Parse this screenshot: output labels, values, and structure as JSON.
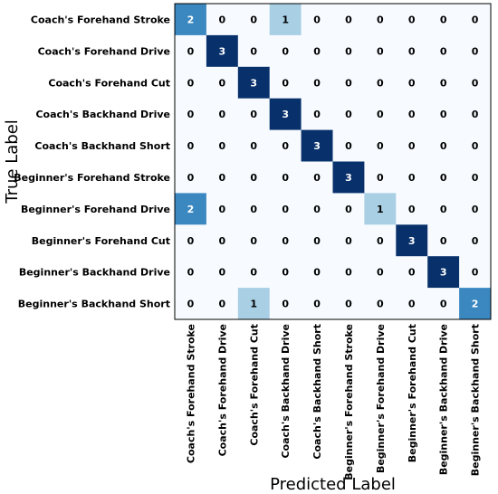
{
  "chart_data": {
    "type": "heatmap",
    "title": "",
    "xlabel": "Predicted Label",
    "ylabel": "True Label",
    "row_labels": [
      "Coach's Forehand Stroke",
      "Coach's Forehand Drive",
      "Coach's Forehand Cut",
      "Coach's Backhand Drive",
      "Coach's Backhand Short",
      "Beginner's Forehand Stroke",
      "Beginner's Forehand Drive",
      "Beginner's Forehand Cut",
      "Beginner's Backhand Drive",
      "Beginner's Backhand Short"
    ],
    "col_labels": [
      "Coach's Forehand Stroke",
      "Coach's Forehand Drive",
      "Coach's Forehand Cut",
      "Coach's Backhand Drive",
      "Coach's Backhand Short",
      "Beginner's Forehand Stroke",
      "Beginner's Forehand Drive",
      "Beginner's Forehand Cut",
      "Beginner's Backhand Drive",
      "Beginner's Backhand Short"
    ],
    "values": [
      [
        2,
        0,
        0,
        1,
        0,
        0,
        0,
        0,
        0,
        0
      ],
      [
        0,
        3,
        0,
        0,
        0,
        0,
        0,
        0,
        0,
        0
      ],
      [
        0,
        0,
        3,
        0,
        0,
        0,
        0,
        0,
        0,
        0
      ],
      [
        0,
        0,
        0,
        3,
        0,
        0,
        0,
        0,
        0,
        0
      ],
      [
        0,
        0,
        0,
        0,
        3,
        0,
        0,
        0,
        0,
        0
      ],
      [
        0,
        0,
        0,
        0,
        0,
        3,
        0,
        0,
        0,
        0
      ],
      [
        2,
        0,
        0,
        0,
        0,
        0,
        1,
        0,
        0,
        0
      ],
      [
        0,
        0,
        0,
        0,
        0,
        0,
        0,
        3,
        0,
        0
      ],
      [
        0,
        0,
        0,
        0,
        0,
        0,
        0,
        0,
        3,
        0
      ],
      [
        0,
        0,
        1,
        0,
        0,
        0,
        0,
        0,
        0,
        2
      ]
    ],
    "colormap": "Blues",
    "vmin": 0,
    "vmax": 3,
    "colors": {
      "v0": "#f7fbff",
      "v1": "#a9cfe5",
      "v2": "#3b88c1",
      "v3": "#08306b",
      "text_dark": "#000000",
      "text_light": "#ffffff",
      "frame": "#000000"
    }
  }
}
